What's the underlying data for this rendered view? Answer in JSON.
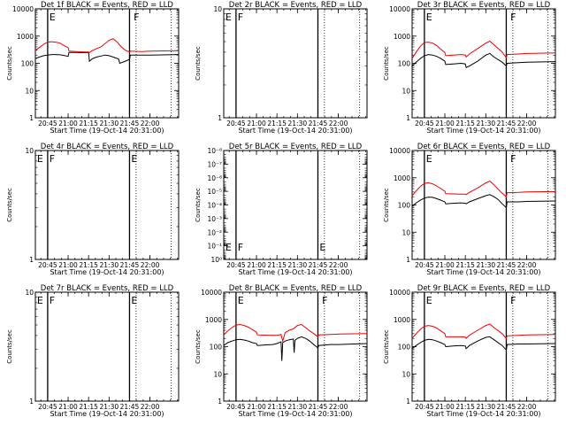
{
  "figure": {
    "xlabel": "Start Time (19-Oct-14 20:31:00)",
    "ylabel": "Counts/sec",
    "xlim": [
      20.6,
      22.35
    ],
    "xticks": [
      20.75,
      21.0,
      21.25,
      21.5,
      21.75,
      22.0
    ],
    "xtick_labels": [
      "20:45",
      "21:00",
      "21:15",
      "21:30",
      "21:45",
      "22:00"
    ],
    "xminor_step": 0.0833,
    "colors": {
      "events": "#000000",
      "lld": "#ee0000",
      "background": "#ffffff"
    },
    "solid_markers": [
      20.75,
      21.75
    ],
    "dotted_markers": [
      21.83,
      22.26
    ]
  },
  "chart_data": [
    {
      "id": "det1f",
      "title": "Det 1f BLACK = Events, RED = LLD",
      "type": "line",
      "yscale": "log",
      "ylim": [
        1,
        10000
      ],
      "ytick_values": [
        1,
        10,
        100,
        1000,
        10000
      ],
      "ytick_labels": [
        "1",
        "10",
        "100",
        "1000",
        "10000"
      ],
      "flags": [
        {
          "label": "E",
          "x": 20.76
        },
        {
          "label": "F",
          "x": 21.79
        }
      ],
      "has_data": true,
      "series": [
        {
          "name": "Events",
          "color": "#000000",
          "x": [
            20.6,
            20.65,
            20.7,
            20.75,
            20.8,
            20.85,
            20.9,
            20.95,
            21.0,
            21.01,
            21.1,
            21.2,
            21.25,
            21.26,
            21.3,
            21.35,
            21.4,
            21.45,
            21.5,
            21.55,
            21.6,
            21.62,
            21.63,
            21.7,
            21.75,
            21.76,
            21.8,
            21.9,
            22.0,
            22.35
          ],
          "y": [
            150,
            170,
            190,
            200,
            210,
            210,
            205,
            195,
            180,
            250,
            250,
            245,
            250,
            120,
            150,
            170,
            185,
            200,
            190,
            170,
            150,
            140,
            100,
            120,
            140,
            200,
            200,
            200,
            200,
            210
          ]
        },
        {
          "name": "LLD",
          "color": "#ee0000",
          "x": [
            20.6,
            20.65,
            20.7,
            20.75,
            20.8,
            20.85,
            20.9,
            20.95,
            21.0,
            21.01,
            21.1,
            21.2,
            21.25,
            21.26,
            21.3,
            21.4,
            21.5,
            21.55,
            21.6,
            21.65,
            21.7,
            21.75,
            21.76,
            21.9,
            22.0,
            22.35
          ],
          "y": [
            300,
            380,
            500,
            600,
            620,
            600,
            550,
            450,
            380,
            280,
            270,
            260,
            260,
            250,
            300,
            400,
            700,
            800,
            600,
            400,
            300,
            260,
            280,
            270,
            280,
            290
          ]
        }
      ]
    },
    {
      "id": "det2r",
      "title": "Det 2r BLACK = Events, RED = LLD",
      "type": "line",
      "yscale": "log",
      "ylim": [
        1,
        10
      ],
      "ytick_values": [
        1,
        10
      ],
      "ytick_labels": [
        "1",
        "10"
      ],
      "flags": [
        {
          "label": "E",
          "x": 20.61
        },
        {
          "label": "F",
          "x": 20.76
        }
      ],
      "has_data": false,
      "series": []
    },
    {
      "id": "det3r",
      "title": "Det 3r BLACK = Events, RED = LLD",
      "type": "line",
      "yscale": "log",
      "ylim": [
        1,
        10000
      ],
      "ytick_values": [
        1,
        10,
        100,
        1000,
        10000
      ],
      "ytick_labels": [
        "1",
        "10",
        "100",
        "1000",
        "10000"
      ],
      "flags": [
        {
          "label": "E",
          "x": 20.76
        },
        {
          "label": "F",
          "x": 21.79
        }
      ],
      "has_data": true,
      "series": [
        {
          "name": "Events",
          "color": "#000000",
          "x": [
            20.6,
            20.65,
            20.7,
            20.75,
            20.8,
            20.85,
            20.9,
            20.95,
            21.0,
            21.01,
            21.1,
            21.2,
            21.25,
            21.26,
            21.3,
            21.4,
            21.5,
            21.55,
            21.6,
            21.7,
            21.75,
            21.76,
            21.9,
            22.0,
            22.35
          ],
          "y": [
            80,
            110,
            150,
            190,
            210,
            200,
            180,
            150,
            120,
            90,
            95,
            100,
            95,
            70,
            80,
            120,
            200,
            230,
            170,
            110,
            80,
            100,
            105,
            110,
            115
          ]
        },
        {
          "name": "LLD",
          "color": "#ee0000",
          "x": [
            20.6,
            20.65,
            20.7,
            20.75,
            20.8,
            20.85,
            20.9,
            20.95,
            21.0,
            21.01,
            21.1,
            21.2,
            21.25,
            21.26,
            21.3,
            21.4,
            21.5,
            21.55,
            21.6,
            21.7,
            21.75,
            21.76,
            21.9,
            22.0,
            22.35
          ],
          "y": [
            150,
            260,
            420,
            580,
            600,
            550,
            450,
            330,
            250,
            190,
            200,
            210,
            200,
            170,
            220,
            350,
            550,
            650,
            480,
            260,
            160,
            210,
            220,
            230,
            240
          ]
        }
      ]
    },
    {
      "id": "det4r",
      "title": "Det 4r BLACK = Events, RED = LLD",
      "type": "line",
      "yscale": "log",
      "ylim": [
        1,
        10
      ],
      "ytick_values": [
        1,
        10
      ],
      "ytick_labels": [
        "1",
        "10"
      ],
      "flags": [
        {
          "label": "E",
          "x": 20.61
        },
        {
          "label": "F",
          "x": 20.76
        },
        {
          "label": "E",
          "x": 21.76
        }
      ],
      "has_data": false,
      "series": []
    },
    {
      "id": "det5r",
      "title": "Det 5r BLACK = Events, RED = LLD",
      "type": "line",
      "yscale": "log",
      "ylim": [
        1,
        1e-08
      ],
      "ytick_values": [
        1,
        0.1,
        0.01,
        0.001,
        0.0001,
        1e-05,
        1e-06,
        1e-07,
        1e-08
      ],
      "ytick_labels": [
        "10⁰",
        "10⁻¹",
        "10⁻²",
        "10⁻³",
        "10⁻⁴",
        "10⁻⁵",
        "10⁻⁶",
        "10⁻⁷",
        "10⁻⁸"
      ],
      "flags": [
        {
          "label": "E",
          "x": 20.61
        },
        {
          "label": "F",
          "x": 20.76
        },
        {
          "label": "E",
          "x": 21.76
        }
      ],
      "flag_position": "bottom",
      "has_data": false,
      "series": []
    },
    {
      "id": "det6r",
      "title": "Det 6r BLACK = Events, RED = LLD",
      "type": "line",
      "yscale": "log",
      "ylim": [
        1,
        10000
      ],
      "ytick_values": [
        1,
        10,
        100,
        1000,
        10000
      ],
      "ytick_labels": [
        "1",
        "10",
        "100",
        "1000",
        "10000"
      ],
      "flags": [
        {
          "label": "E",
          "x": 20.76
        },
        {
          "label": "F",
          "x": 21.79
        }
      ],
      "has_data": true,
      "series": [
        {
          "name": "Events",
          "color": "#000000",
          "x": [
            20.6,
            20.65,
            20.7,
            20.75,
            20.8,
            20.85,
            20.9,
            20.95,
            21.0,
            21.01,
            21.1,
            21.2,
            21.25,
            21.26,
            21.3,
            21.4,
            21.5,
            21.55,
            21.6,
            21.65,
            21.7,
            21.75,
            21.76,
            21.9,
            22.0,
            22.35
          ],
          "y": [
            90,
            120,
            150,
            180,
            195,
            190,
            170,
            150,
            130,
            110,
            115,
            120,
            115,
            110,
            130,
            170,
            220,
            240,
            200,
            160,
            110,
            80,
            130,
            130,
            135,
            140
          ]
        },
        {
          "name": "LLD",
          "color": "#ee0000",
          "x": [
            20.6,
            20.65,
            20.7,
            20.75,
            20.8,
            20.85,
            20.9,
            20.95,
            21.0,
            21.01,
            21.1,
            21.2,
            21.25,
            21.26,
            21.3,
            21.4,
            21.5,
            21.55,
            21.6,
            21.65,
            21.7,
            21.75,
            21.76,
            21.9,
            22.0,
            22.35
          ],
          "y": [
            220,
            330,
            480,
            620,
            650,
            600,
            500,
            400,
            320,
            260,
            255,
            250,
            250,
            240,
            290,
            420,
            650,
            750,
            550,
            380,
            270,
            200,
            280,
            290,
            300,
            310
          ]
        }
      ]
    },
    {
      "id": "det7r",
      "title": "Det 7r BLACK = Events, RED = LLD",
      "type": "line",
      "yscale": "log",
      "ylim": [
        1,
        10
      ],
      "ytick_values": [
        1,
        10
      ],
      "ytick_labels": [
        "1",
        "10"
      ],
      "flags": [
        {
          "label": "E",
          "x": 20.61
        },
        {
          "label": "F",
          "x": 20.76
        },
        {
          "label": "E",
          "x": 21.76
        }
      ],
      "has_data": false,
      "series": []
    },
    {
      "id": "det8r",
      "title": "Det 8r BLACK = Events, RED = LLD",
      "type": "line",
      "yscale": "log",
      "ylim": [
        1,
        10000
      ],
      "ytick_values": [
        1,
        10,
        100,
        1000,
        10000
      ],
      "ytick_labels": [
        "1",
        "10",
        "100",
        "1000",
        "10000"
      ],
      "flags": [
        {
          "label": "E",
          "x": 20.76
        },
        {
          "label": "F",
          "x": 21.79
        }
      ],
      "has_data": true,
      "series": [
        {
          "name": "Events",
          "color": "#000000",
          "x": [
            20.6,
            20.65,
            20.7,
            20.75,
            20.8,
            20.85,
            20.9,
            20.95,
            21.0,
            21.01,
            21.1,
            21.2,
            21.25,
            21.3,
            21.31,
            21.32,
            21.35,
            21.4,
            21.45,
            21.46,
            21.47,
            21.5,
            21.55,
            21.6,
            21.65,
            21.7,
            21.75,
            21.76,
            21.9,
            22.0,
            22.35
          ],
          "y": [
            110,
            140,
            160,
            180,
            185,
            175,
            160,
            140,
            130,
            110,
            115,
            120,
            130,
            150,
            30,
            140,
            160,
            180,
            190,
            60,
            170,
            200,
            230,
            200,
            160,
            120,
            90,
            110,
            120,
            120,
            130
          ]
        },
        {
          "name": "LLD",
          "color": "#ee0000",
          "x": [
            20.6,
            20.65,
            20.7,
            20.75,
            20.8,
            20.85,
            20.9,
            20.95,
            21.0,
            21.01,
            21.1,
            21.2,
            21.25,
            21.3,
            21.32,
            21.35,
            21.4,
            21.45,
            21.5,
            21.55,
            21.6,
            21.65,
            21.7,
            21.75,
            21.76,
            21.9,
            22.0,
            22.35
          ],
          "y": [
            270,
            380,
            500,
            620,
            650,
            600,
            520,
            420,
            340,
            270,
            265,
            260,
            260,
            280,
            160,
            330,
            400,
            450,
            600,
            650,
            500,
            380,
            300,
            230,
            270,
            280,
            290,
            300
          ]
        }
      ]
    },
    {
      "id": "det9r",
      "title": "Det 9r BLACK = Events, RED = LLD",
      "type": "line",
      "yscale": "log",
      "ylim": [
        1,
        10000
      ],
      "ytick_values": [
        1,
        10,
        100,
        1000,
        10000
      ],
      "ytick_labels": [
        "1",
        "10",
        "100",
        "1000",
        "10000"
      ],
      "flags": [
        {
          "label": "E",
          "x": 20.76
        },
        {
          "label": "F",
          "x": 21.79
        }
      ],
      "has_data": true,
      "series": [
        {
          "name": "Events",
          "color": "#000000",
          "x": [
            20.6,
            20.65,
            20.7,
            20.75,
            20.8,
            20.85,
            20.9,
            20.95,
            21.0,
            21.01,
            21.1,
            21.2,
            21.25,
            21.26,
            21.3,
            21.4,
            21.5,
            21.55,
            21.6,
            21.7,
            21.75,
            21.76,
            21.9,
            22.0,
            22.35
          ],
          "y": [
            85,
            110,
            140,
            170,
            185,
            180,
            160,
            140,
            120,
            100,
            105,
            110,
            105,
            85,
            110,
            160,
            220,
            230,
            180,
            110,
            75,
            120,
            125,
            125,
            130
          ]
        },
        {
          "name": "LLD",
          "color": "#ee0000",
          "x": [
            20.6,
            20.65,
            20.7,
            20.75,
            20.8,
            20.85,
            20.9,
            20.95,
            21.0,
            21.01,
            21.1,
            21.2,
            21.25,
            21.26,
            21.3,
            21.4,
            21.5,
            21.55,
            21.6,
            21.7,
            21.75,
            21.76,
            21.9,
            22.0,
            22.35
          ],
          "y": [
            200,
            300,
            430,
            560,
            600,
            560,
            480,
            380,
            300,
            230,
            230,
            230,
            225,
            200,
            260,
            400,
            600,
            680,
            500,
            300,
            200,
            250,
            260,
            270,
            280
          ]
        }
      ]
    }
  ]
}
